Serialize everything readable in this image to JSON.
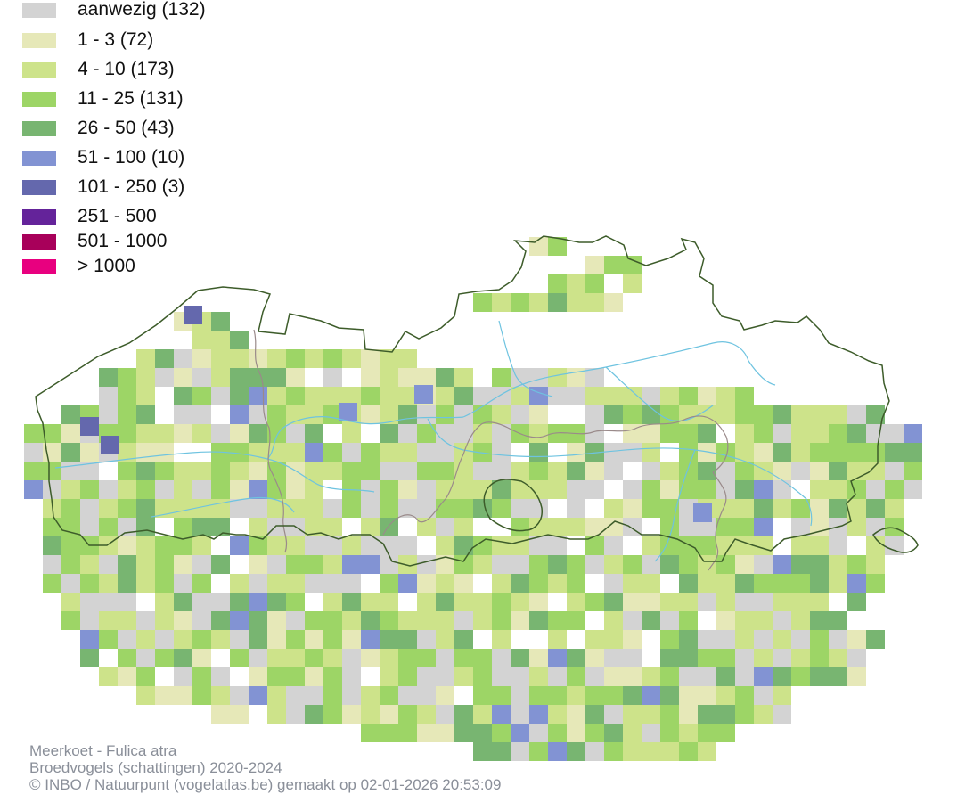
{
  "legend": {
    "items": [
      {
        "label": "aanwezig (132)",
        "color": "#d3d3d3"
      },
      {
        "label": "1 - 3 (72)",
        "color": "#e6e8b8"
      },
      {
        "label": "4 - 10 (173)",
        "color": "#cde38a"
      },
      {
        "label": "11 - 25 (131)",
        "color": "#9dd566"
      },
      {
        "label": "26 - 50 (43)",
        "color": "#78b571"
      },
      {
        "label": "51 - 100 (10)",
        "color": "#8293d3"
      },
      {
        "label": "101 - 250 (3)",
        "color": "#6468ad"
      },
      {
        "label": "251 - 500",
        "color": "#64239a"
      },
      {
        "label": "501 - 1000",
        "color": "#a8005a"
      },
      {
        "label": "> 1000",
        "color": "#e8007f"
      }
    ]
  },
  "map": {
    "region_border_color": "#3d5c2a",
    "province_border_color": "#9a8a8a",
    "river_color": "#6ec3e0"
  },
  "credits": {
    "species": "Meerkoet - Fulica atra",
    "dataset": "Broedvogels (schattingen) 2020-2024",
    "copyright": "© INBO / Natuurpunt (vogelatlas.be) gemaakt op 02-01-2026 20:53:09"
  }
}
